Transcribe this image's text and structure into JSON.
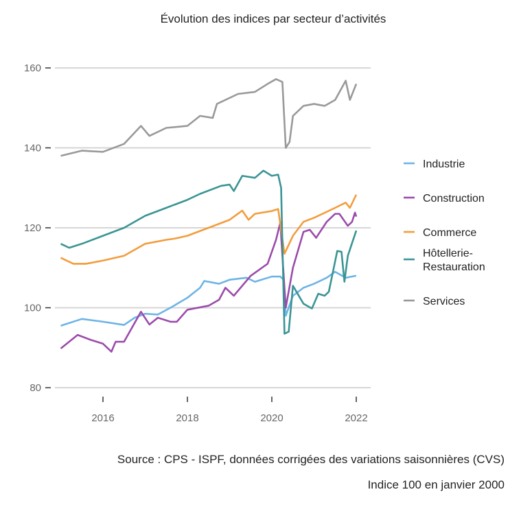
{
  "chart_data": {
    "type": "line",
    "title": "Évolution des indices par secteur d’activités",
    "xlabel": "",
    "ylabel": "",
    "xlim": [
      2015,
      2022
    ],
    "ylim": [
      80,
      160
    ],
    "x_ticks": [
      "2016",
      "2018",
      "2020",
      "2022"
    ],
    "y_ticks": [
      "80",
      "100",
      "120",
      "140",
      "160"
    ],
    "grid": "horizontal",
    "legend": "right",
    "series": [
      {
        "name": "Industrie",
        "color": "#6cb4e6",
        "points": [
          [
            2015,
            95.5
          ],
          [
            2015.5,
            97.2
          ],
          [
            2016,
            96.5
          ],
          [
            2016.5,
            95.7
          ],
          [
            2016.75,
            97.5
          ],
          [
            2017,
            98.5
          ],
          [
            2017.3,
            98.3
          ],
          [
            2017.6,
            100
          ],
          [
            2018,
            102.5
          ],
          [
            2018.3,
            105
          ],
          [
            2018.4,
            106.7
          ],
          [
            2018.75,
            106
          ],
          [
            2019,
            107
          ],
          [
            2019.4,
            107.5
          ],
          [
            2019.6,
            106.5
          ],
          [
            2020,
            107.8
          ],
          [
            2020.2,
            107.8
          ],
          [
            2020.28,
            107
          ],
          [
            2020.33,
            98
          ],
          [
            2020.5,
            103
          ],
          [
            2020.75,
            105
          ],
          [
            2021,
            106
          ],
          [
            2021.3,
            107.5
          ],
          [
            2021.5,
            109
          ],
          [
            2021.75,
            107.5
          ],
          [
            2022,
            108
          ]
        ]
      },
      {
        "name": "Construction",
        "color": "#9b4bab",
        "points": [
          [
            2015,
            89.8
          ],
          [
            2015.4,
            93.2
          ],
          [
            2015.7,
            92
          ],
          [
            2016,
            91
          ],
          [
            2016.2,
            89
          ],
          [
            2016.3,
            91.5
          ],
          [
            2016.5,
            91.5
          ],
          [
            2016.9,
            99
          ],
          [
            2017.1,
            95.8
          ],
          [
            2017.3,
            97.5
          ],
          [
            2017.6,
            96.5
          ],
          [
            2017.75,
            96.5
          ],
          [
            2018,
            99.5
          ],
          [
            2018.5,
            100.5
          ],
          [
            2018.75,
            102
          ],
          [
            2018.9,
            105
          ],
          [
            2019.1,
            103
          ],
          [
            2019.5,
            108
          ],
          [
            2019.7,
            109.5
          ],
          [
            2019.9,
            111
          ],
          [
            2020.1,
            117
          ],
          [
            2020.2,
            121.3
          ],
          [
            2020.33,
            100
          ],
          [
            2020.5,
            110
          ],
          [
            2020.75,
            119
          ],
          [
            2020.9,
            119.5
          ],
          [
            2021.05,
            117.5
          ],
          [
            2021.3,
            121.5
          ],
          [
            2021.5,
            123.5
          ],
          [
            2021.6,
            123.5
          ],
          [
            2021.8,
            120.5
          ],
          [
            2021.9,
            121.5
          ],
          [
            2021.97,
            123.8
          ],
          [
            2022,
            122.8
          ]
        ]
      },
      {
        "name": "Commerce",
        "color": "#f39c3c",
        "points": [
          [
            2015,
            112.5
          ],
          [
            2015.3,
            111
          ],
          [
            2015.6,
            111
          ],
          [
            2016,
            111.8
          ],
          [
            2016.5,
            113
          ],
          [
            2017,
            116
          ],
          [
            2017.5,
            117
          ],
          [
            2017.7,
            117.3
          ],
          [
            2018,
            118
          ],
          [
            2018.5,
            120
          ],
          [
            2019,
            122
          ],
          [
            2019.3,
            124.3
          ],
          [
            2019.45,
            122
          ],
          [
            2019.6,
            123.5
          ],
          [
            2020,
            124.2
          ],
          [
            2020.15,
            124.7
          ],
          [
            2020.3,
            113.5
          ],
          [
            2020.5,
            118
          ],
          [
            2020.75,
            121.5
          ],
          [
            2021,
            122.5
          ],
          [
            2021.5,
            125
          ],
          [
            2021.75,
            126.3
          ],
          [
            2021.85,
            125
          ],
          [
            2022,
            128.3
          ]
        ]
      },
      {
        "name": "Hôtellerie-Restauration",
        "color": "#3a9494",
        "points": [
          [
            2015,
            116
          ],
          [
            2015.2,
            115
          ],
          [
            2015.5,
            116
          ],
          [
            2016,
            118
          ],
          [
            2016.5,
            120
          ],
          [
            2017,
            123
          ],
          [
            2017.5,
            125
          ],
          [
            2018,
            127
          ],
          [
            2018.3,
            128.5
          ],
          [
            2018.8,
            130.5
          ],
          [
            2019,
            130.8
          ],
          [
            2019.1,
            129.2
          ],
          [
            2019.3,
            133
          ],
          [
            2019.6,
            132.5
          ],
          [
            2019.8,
            134.3
          ],
          [
            2020,
            133
          ],
          [
            2020.15,
            133.3
          ],
          [
            2020.22,
            130
          ],
          [
            2020.3,
            93.5
          ],
          [
            2020.4,
            94
          ],
          [
            2020.5,
            105.5
          ],
          [
            2020.75,
            101
          ],
          [
            2020.95,
            99.8
          ],
          [
            2021.1,
            103.5
          ],
          [
            2021.25,
            103
          ],
          [
            2021.35,
            104
          ],
          [
            2021.55,
            114.2
          ],
          [
            2021.65,
            114
          ],
          [
            2021.72,
            106.5
          ],
          [
            2021.8,
            113
          ],
          [
            2022,
            119.3
          ]
        ]
      },
      {
        "name": "Services",
        "color": "#999999",
        "points": [
          [
            2015,
            138
          ],
          [
            2015.5,
            139.3
          ],
          [
            2016,
            139
          ],
          [
            2016.5,
            141
          ],
          [
            2016.9,
            145.5
          ],
          [
            2017.1,
            143
          ],
          [
            2017.5,
            145
          ],
          [
            2018,
            145.5
          ],
          [
            2018.3,
            148
          ],
          [
            2018.6,
            147.5
          ],
          [
            2018.7,
            151
          ],
          [
            2019.2,
            153.5
          ],
          [
            2019.6,
            154
          ],
          [
            2019.9,
            156
          ],
          [
            2020.1,
            157.2
          ],
          [
            2020.25,
            156.5
          ],
          [
            2020.33,
            140
          ],
          [
            2020.42,
            141.5
          ],
          [
            2020.5,
            148
          ],
          [
            2020.75,
            150.5
          ],
          [
            2021,
            151
          ],
          [
            2021.25,
            150.5
          ],
          [
            2021.5,
            152
          ],
          [
            2021.75,
            156.8
          ],
          [
            2021.85,
            152
          ],
          [
            2022,
            156
          ]
        ]
      }
    ]
  },
  "footer": {
    "source": "Source : CPS - ISPF, données corrigées des variations saisonnières (CVS)",
    "note": "Indice 100 en janvier 2000"
  }
}
